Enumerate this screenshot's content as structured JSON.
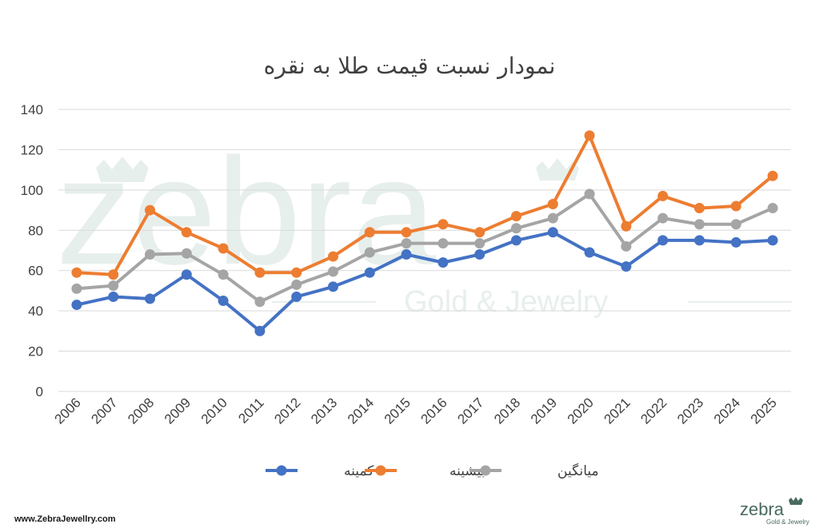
{
  "chart_data": {
    "type": "line",
    "title": "نمودار نسبت قیمت طلا به نقره",
    "categories": [
      "2006",
      "2007",
      "2008",
      "2009",
      "2010",
      "2011",
      "2012",
      "2013",
      "2014",
      "2015",
      "2016",
      "2017",
      "2018",
      "2019",
      "2020",
      "2021",
      "2022",
      "2023",
      "2024",
      "2025"
    ],
    "ylim": [
      0,
      140
    ],
    "yticks": [
      0,
      20,
      40,
      60,
      80,
      100,
      120,
      140
    ],
    "grid": true,
    "legend_position": "bottom",
    "series": [
      {
        "name": "کمینه",
        "color": "#4472c4",
        "values": [
          43,
          47,
          46,
          58,
          45,
          30,
          47,
          52,
          59,
          68,
          64,
          68,
          75,
          79,
          69,
          62,
          75,
          75,
          74,
          75
        ]
      },
      {
        "name": "بیشینه",
        "color": "#ed7d31",
        "values": [
          59,
          58,
          90,
          79,
          71,
          59,
          59,
          67,
          79,
          79,
          83,
          79,
          87,
          93,
          127,
          82,
          97,
          91,
          92,
          107
        ]
      },
      {
        "name": "میانگین",
        "color": "#a5a5a5",
        "values": [
          51,
          52.5,
          68,
          68.5,
          58,
          44.5,
          53,
          59.5,
          69,
          73.5,
          73.5,
          73.5,
          81,
          86,
          98,
          72,
          86,
          83,
          83,
          91
        ]
      }
    ]
  },
  "footer": {
    "url": "www.ZebraJewellry.com",
    "brand": "zebra",
    "brand_sub": "Gold & Jewelry"
  }
}
